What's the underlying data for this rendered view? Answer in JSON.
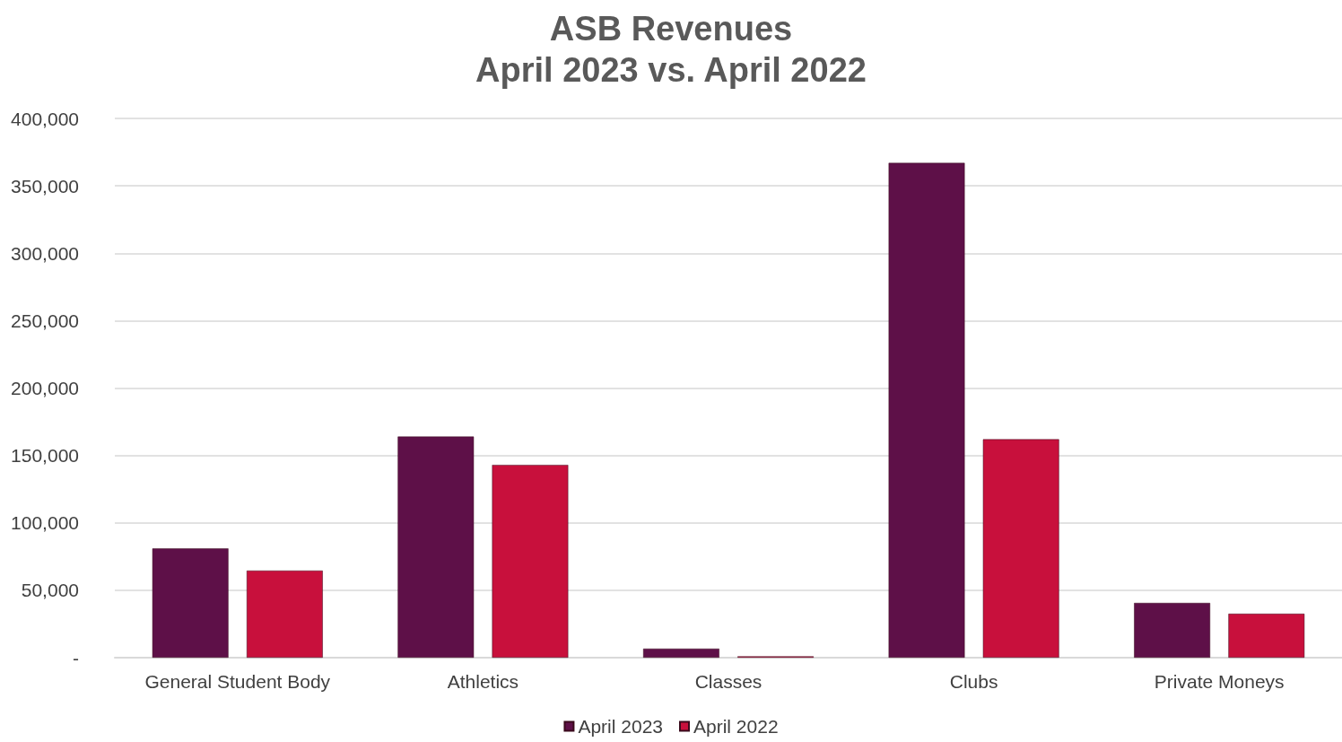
{
  "chart_data": {
    "type": "bar",
    "title": "ASB Revenues\nApril 2023 vs. April 2022",
    "categories": [
      "General Student Body",
      "Athletics",
      "Classes",
      "Clubs",
      "Private Moneys"
    ],
    "series": [
      {
        "name": "April 2023",
        "color": "#5e1048",
        "values": [
          81000,
          164000,
          6700,
          367000,
          40600
        ]
      },
      {
        "name": "April 2022",
        "color": "#c8103c",
        "values": [
          64600,
          143000,
          1000,
          162000,
          32600
        ]
      }
    ],
    "ylim": [
      0,
      400000
    ],
    "yticks": [
      {
        "value": 0,
        "label": "-"
      },
      {
        "value": 50000,
        "label": "50,000"
      },
      {
        "value": 100000,
        "label": "100,000"
      },
      {
        "value": 150000,
        "label": "150,000"
      },
      {
        "value": 200000,
        "label": "200,000"
      },
      {
        "value": 250000,
        "label": "250,000"
      },
      {
        "value": 300000,
        "label": "300,000"
      },
      {
        "value": 350000,
        "label": "350,000"
      },
      {
        "value": 400000,
        "label": "400,000"
      }
    ],
    "grid": "y",
    "legend": "bottom"
  }
}
